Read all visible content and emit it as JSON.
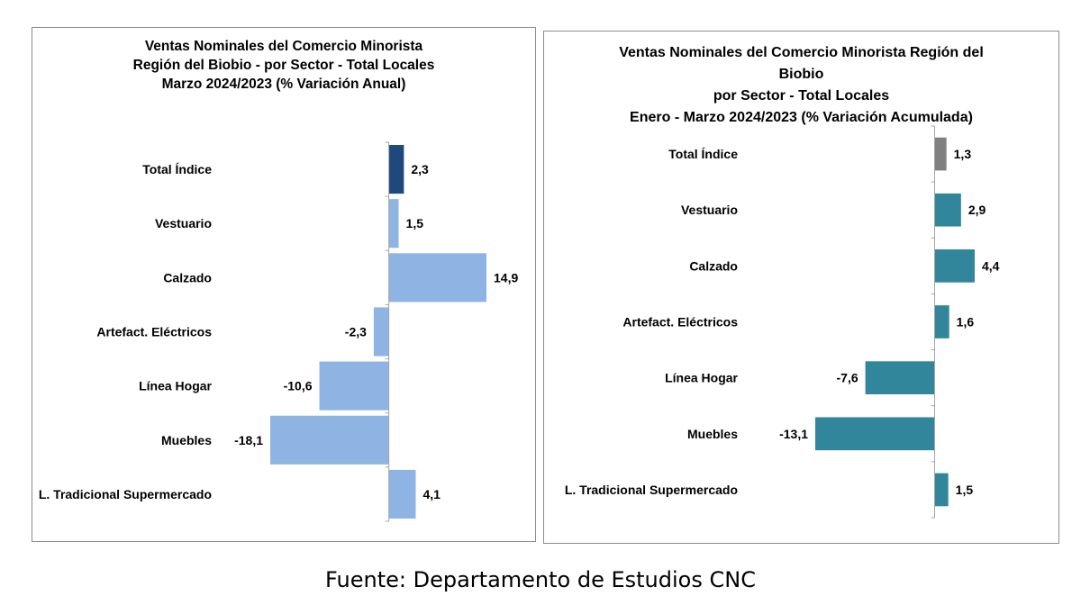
{
  "chart_data": [
    {
      "type": "bar",
      "orientation": "horizontal",
      "title_lines": [
        "Ventas Nominales del Comercio Minorista",
        "Región del Biobio - por Sector - Total Locales",
        "Marzo 2024/2023 (% Variación Anual)"
      ],
      "categories": [
        "Total Índice",
        "Vestuario",
        "Calzado",
        "Artefact. Eléctricos",
        "Línea Hogar",
        "Muebles",
        "L. Tradicional Supermercado"
      ],
      "values": [
        2.3,
        1.5,
        14.9,
        -2.3,
        -10.6,
        -18.1,
        4.1
      ],
      "value_labels": [
        "2,3",
        "1,5",
        "14,9",
        "-2,3",
        "-10,6",
        "-18,1",
        "4,1"
      ],
      "xlim": [
        -18.1,
        14.9
      ],
      "bar_colors": [
        "#1f497d",
        "#8eb4e3",
        "#8eb4e3",
        "#8eb4e3",
        "#8eb4e3",
        "#8eb4e3",
        "#8eb4e3"
      ],
      "grid": false,
      "legend": "none"
    },
    {
      "type": "bar",
      "orientation": "horizontal",
      "title_lines": [
        "Ventas Nominales del Comercio Minorista Región del",
        "Biobio",
        "por Sector - Total Locales",
        "Enero - Marzo 2024/2023  (% Variación Acumulada)"
      ],
      "categories": [
        "Total Índice",
        "Vestuario",
        "Calzado",
        "Artefact. Eléctricos",
        "Línea Hogar",
        "Muebles",
        "L. Tradicional Supermercado"
      ],
      "values": [
        1.3,
        2.9,
        4.4,
        1.6,
        -7.6,
        -13.1,
        1.5
      ],
      "value_labels": [
        "1,3",
        "2,9",
        "4,4",
        "1,6",
        "-7,6",
        "-13,1",
        "1,5"
      ],
      "xlim": [
        -13.1,
        4.4
      ],
      "bar_colors": [
        "#808080",
        "#31869b",
        "#31869b",
        "#31869b",
        "#31869b",
        "#31869b",
        "#31869b"
      ],
      "grid": false,
      "legend": "none"
    }
  ],
  "footer": {
    "source": "Fuente: Departamento de Estudios CNC"
  }
}
